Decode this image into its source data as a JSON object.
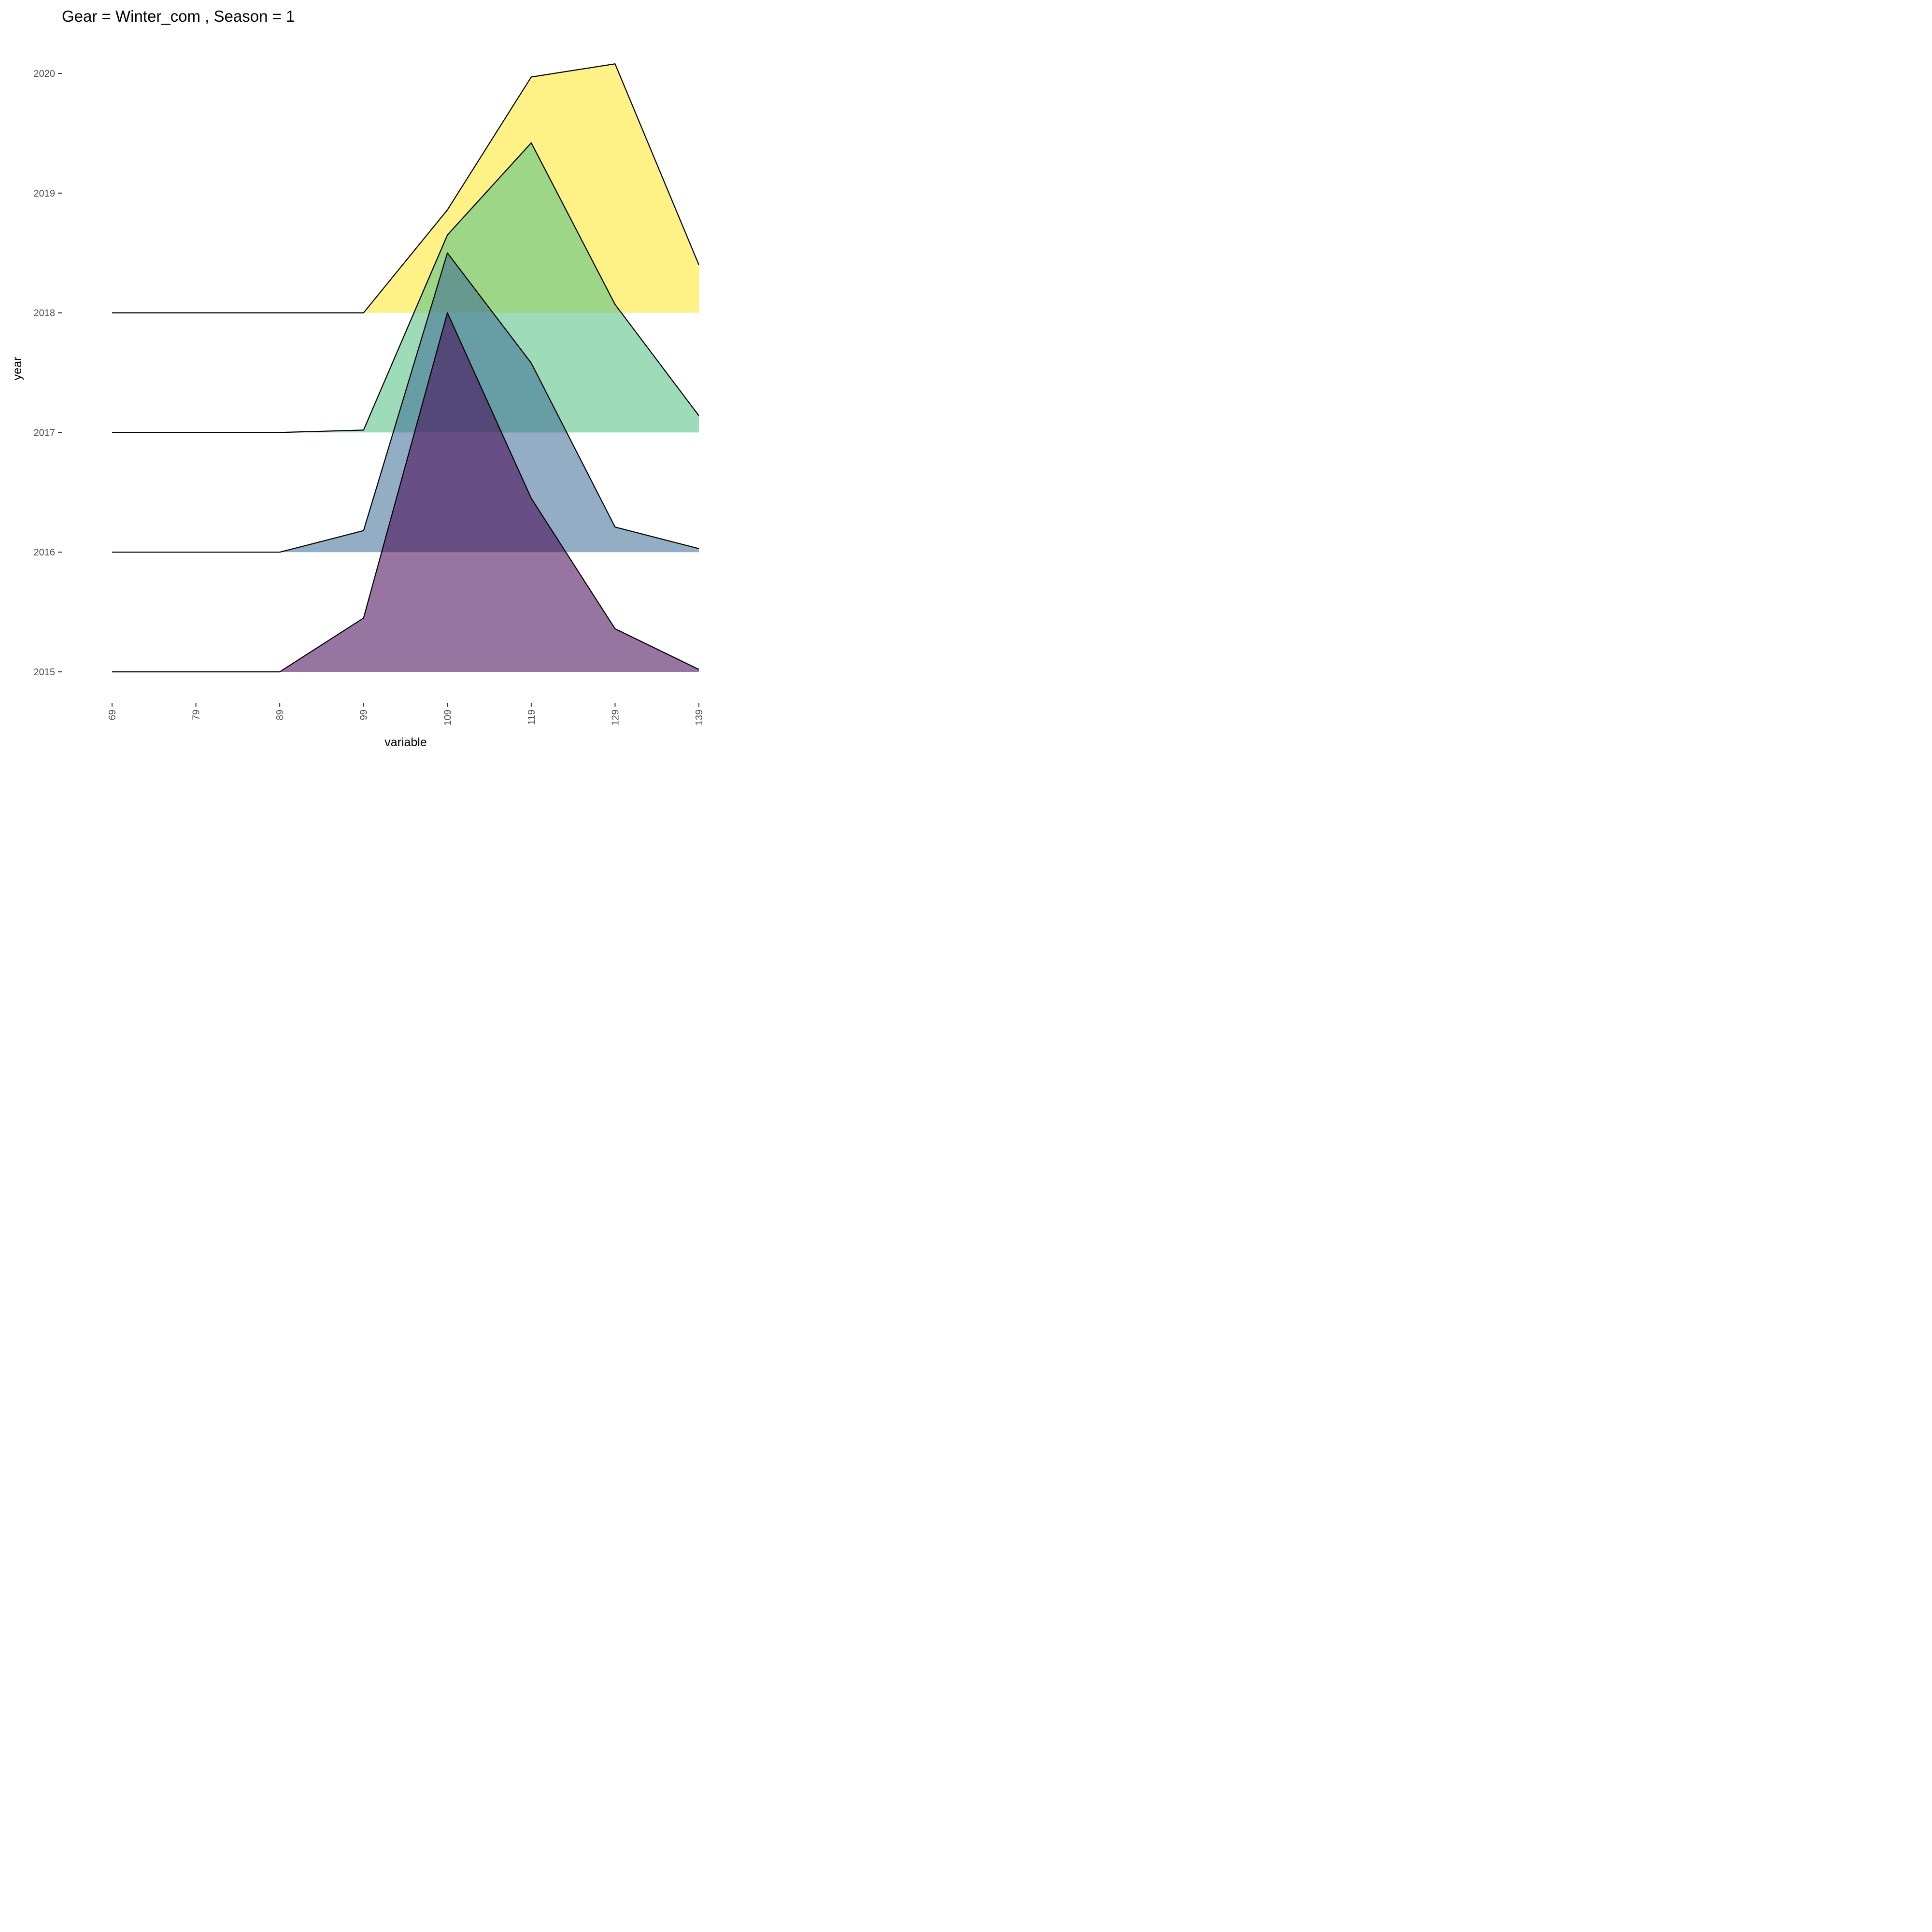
{
  "chart_data": {
    "type": "area",
    "subtype": "ridgeline",
    "title": "Gear = Winter_com , Season = 1",
    "xlabel": "variable",
    "ylabel": "year",
    "x": [
      69,
      79,
      89,
      99,
      109,
      119,
      129,
      139
    ],
    "x_tick_labels": [
      "69",
      "79",
      "89",
      "99",
      "109",
      "119",
      "129",
      "139"
    ],
    "y_tick_labels": [
      "2015",
      "2016",
      "2017",
      "2018",
      "2019",
      "2020"
    ],
    "xlim": [
      69,
      139
    ],
    "ylim": [
      2015,
      2020
    ],
    "grid": false,
    "legend": "none",
    "series": [
      {
        "name": "2015",
        "baseline": 2015,
        "color": "#440154",
        "opacity": 0.55,
        "values": [
          0,
          0,
          0,
          0.45,
          3.0,
          1.45,
          0.36,
          0.02
        ]
      },
      {
        "name": "2016",
        "baseline": 2016,
        "color": "#3b6a93",
        "opacity": 0.55,
        "values": [
          0,
          0,
          0,
          0.18,
          2.5,
          1.58,
          0.21,
          0.03
        ]
      },
      {
        "name": "2017",
        "baseline": 2017,
        "color": "#5ec389",
        "opacity": 0.6,
        "values": [
          0,
          0,
          0,
          0.02,
          1.65,
          2.42,
          1.07,
          0.14
        ]
      },
      {
        "name": "2018",
        "baseline": 2018,
        "color": "#fde725",
        "opacity": 0.55,
        "values": [
          0,
          0,
          0,
          0,
          0.86,
          1.97,
          2.08,
          0.4
        ]
      }
    ]
  }
}
